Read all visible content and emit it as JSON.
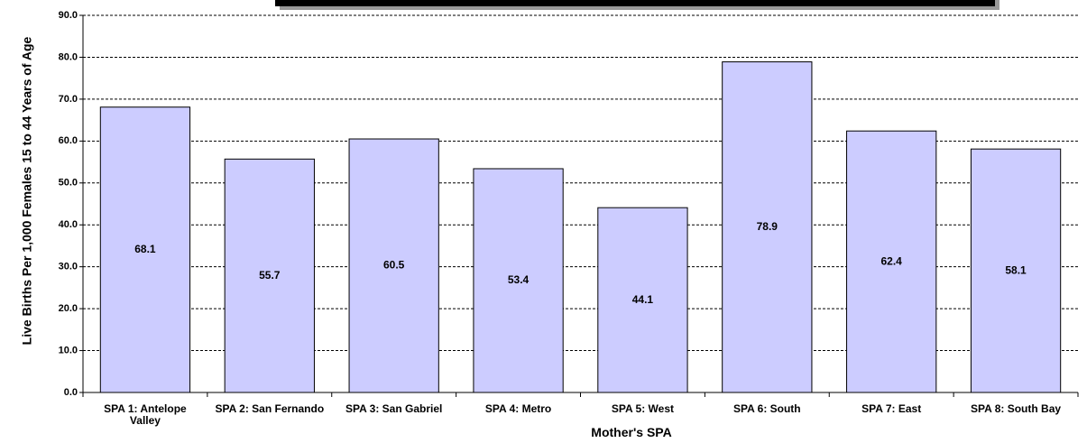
{
  "chart_data": {
    "type": "bar",
    "xlabel": "Mother's SPA",
    "ylabel": "Live Births Per 1,000 Females 15 to 44 Years of Age",
    "categories": [
      "SPA 1: Antelope Valley",
      "SPA 2: San Fernando",
      "SPA 3: San Gabriel",
      "SPA 4: Metro",
      "SPA 5: West",
      "SPA 6: South",
      "SPA 7: East",
      "SPA 8: South Bay"
    ],
    "values": [
      68.1,
      55.7,
      60.5,
      53.4,
      44.1,
      78.9,
      62.4,
      58.1
    ],
    "color": "#ccccff",
    "ylim": [
      0,
      90
    ],
    "yticks": [
      {
        "value": 0,
        "label": "0.0"
      },
      {
        "value": 10,
        "label": "10.0"
      },
      {
        "value": 20,
        "label": "20.0"
      },
      {
        "value": 30,
        "label": "30.0"
      },
      {
        "value": 40,
        "label": "40.0"
      },
      {
        "value": 50,
        "label": "50.0"
      },
      {
        "value": 60,
        "label": "60.0"
      },
      {
        "value": 70,
        "label": "70.0"
      },
      {
        "value": 80,
        "label": "80.0"
      },
      {
        "value": 90,
        "label": "90.0"
      }
    ],
    "grid": true
  }
}
